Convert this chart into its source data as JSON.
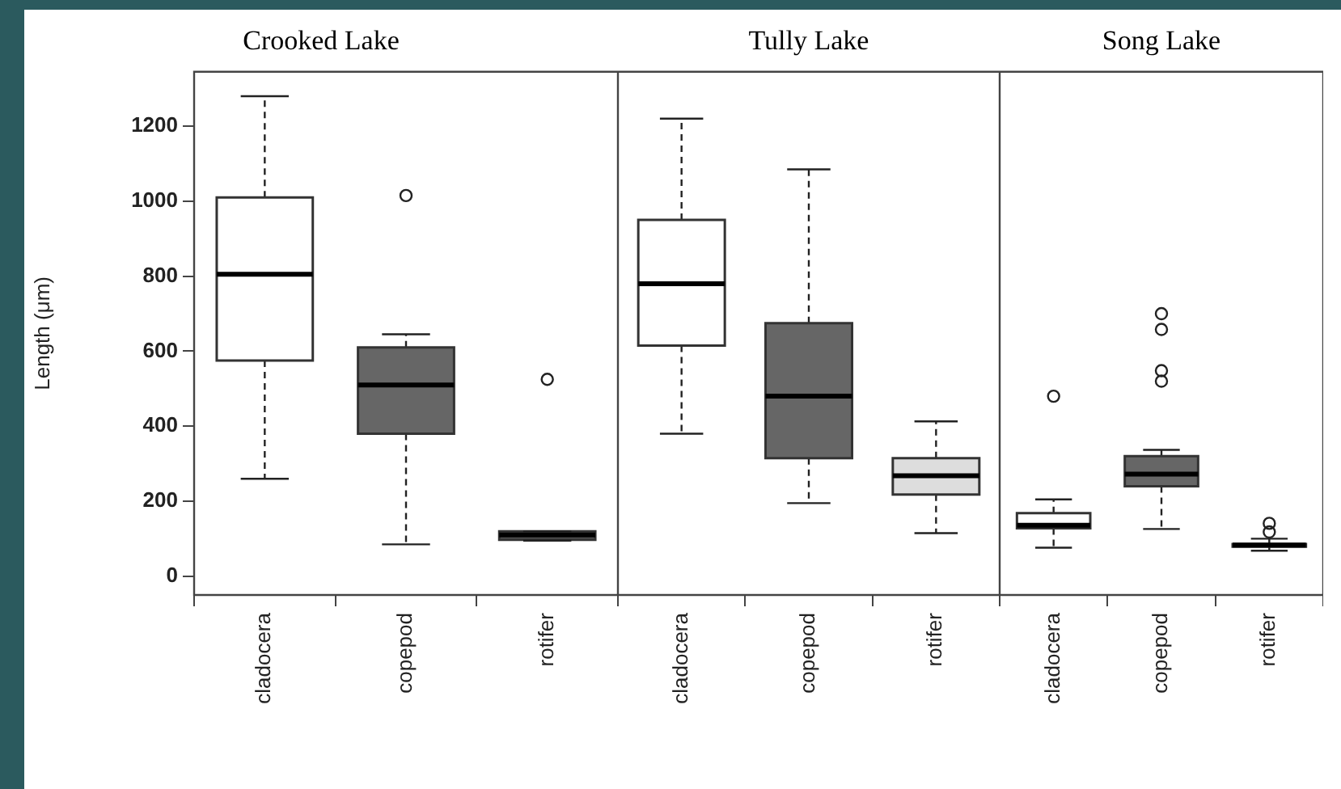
{
  "chart_data": [
    {
      "type": "box",
      "title": "Crooked Lake",
      "ylabel": "Length (μm)",
      "categories": [
        "cladocera",
        "copepod",
        "rotifer"
      ],
      "colors": [
        "#ffffff",
        "#666666",
        "#555555"
      ],
      "ylim": [
        -50,
        1345
      ],
      "yticks": [
        0,
        200,
        400,
        600,
        800,
        1000,
        1200
      ],
      "boxes": [
        {
          "low": 260,
          "q1": 575,
          "median": 805,
          "q3": 1010,
          "high": 1280
        },
        {
          "low": 85,
          "q1": 380,
          "median": 510,
          "q3": 610,
          "high": 645,
          "outliers": [
            1015
          ]
        },
        {
          "low": 95,
          "q1": 97,
          "median": 110,
          "q3": 120,
          "high": 120,
          "outliers": [
            525
          ]
        }
      ]
    },
    {
      "type": "box",
      "title": "Tully Lake",
      "categories": [
        "cladocera",
        "copepod",
        "rotifer"
      ],
      "colors": [
        "#ffffff",
        "#666666",
        "#dddddd"
      ],
      "ylim": [
        -50,
        1345
      ],
      "yticks": [
        0,
        200,
        400,
        600,
        800,
        1000,
        1200
      ],
      "tick_labels": "x",
      "boxes": [
        {
          "low": 380,
          "q1": 615,
          "median": 780,
          "q3": 950,
          "high": 1220
        },
        {
          "low": 195,
          "q1": 315,
          "median": 480,
          "q3": 675,
          "high": 1085
        },
        {
          "low": 115,
          "q1": 218,
          "median": 268,
          "q3": 315,
          "high": 413
        }
      ]
    },
    {
      "type": "box",
      "title": "Song Lake",
      "categories": [
        "cladocera",
        "copepod",
        "rotifer"
      ],
      "colors": [
        "#ffffff",
        "#666666",
        "#888888"
      ],
      "ylim": [
        -50,
        1345
      ],
      "yticks": [
        0,
        200,
        400,
        600,
        800,
        1000,
        1200
      ],
      "tick_labels": "x",
      "boxes": [
        {
          "low": 76,
          "q1": 128,
          "median": 136,
          "q3": 168,
          "high": 205,
          "outliers": [
            480
          ]
        },
        {
          "low": 126,
          "q1": 240,
          "median": 272,
          "q3": 320,
          "high": 337,
          "outliers": [
            520,
            548,
            658,
            700
          ]
        },
        {
          "low": 68,
          "q1": 79,
          "median": 83,
          "q3": 86,
          "high": 100,
          "outliers": [
            118,
            141
          ]
        }
      ]
    }
  ]
}
